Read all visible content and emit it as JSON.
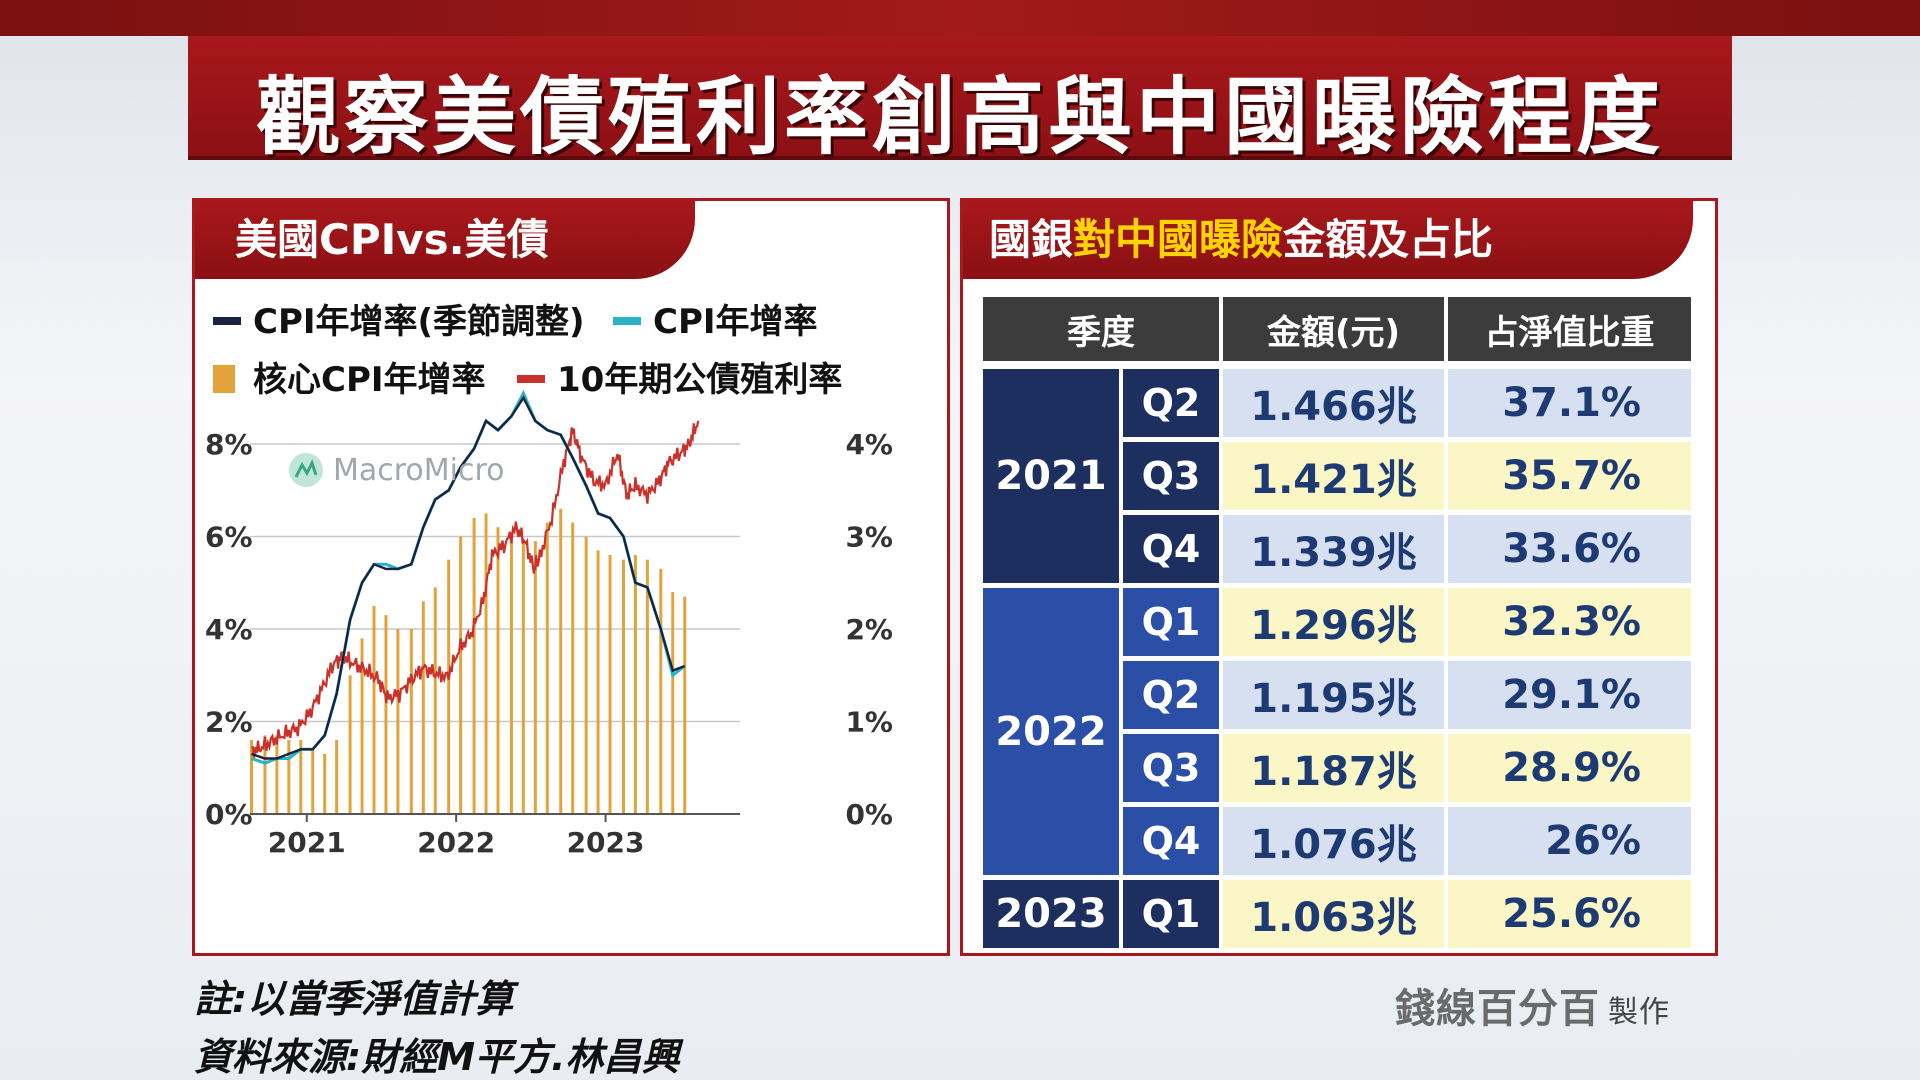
{
  "page": {
    "title": "觀察美債殖利率創高與中國曝險程度",
    "note": "註:以當季淨值計算",
    "source": "資料來源:財經M平方.林昌興",
    "maker": "錢線百分百",
    "maker_suffix": "製作"
  },
  "left_panel": {
    "tab": "美國CPIvs.美債",
    "watermark": "MacroMicro"
  },
  "chart_data": {
    "type": "line",
    "legend": [
      {
        "name": "CPI年增率(季節調整)",
        "color": "#1b2140",
        "kind": "line"
      },
      {
        "name": "CPI年增率",
        "color": "#2ab3c7",
        "kind": "line"
      },
      {
        "name": "核心CPI年增率",
        "color": "#e3a33b",
        "kind": "bar"
      },
      {
        "name": "10年期公債殖利率",
        "color": "#c9312a",
        "kind": "line"
      }
    ],
    "left_axis": {
      "ticks": [
        "0%",
        "2%",
        "4%",
        "6%",
        "8%"
      ],
      "ylim": [
        0,
        8
      ]
    },
    "right_axis": {
      "ticks": [
        "0%",
        "1%",
        "2%",
        "3%",
        "4%"
      ],
      "ylim": [
        0,
        4
      ]
    },
    "x_ticks": [
      {
        "label": "2021",
        "x": 2021.0
      },
      {
        "label": "2022",
        "x": 2022.0
      },
      {
        "label": "2023",
        "x": 2023.0
      }
    ],
    "xlim": [
      2020.62,
      2023.9
    ],
    "cpi_sa": [
      [
        2020.63,
        1.3
      ],
      [
        2020.72,
        1.2
      ],
      [
        2020.8,
        1.2
      ],
      [
        2020.88,
        1.3
      ],
      [
        2020.96,
        1.4
      ],
      [
        2021.04,
        1.4
      ],
      [
        2021.12,
        1.7
      ],
      [
        2021.2,
        2.6
      ],
      [
        2021.29,
        4.2
      ],
      [
        2021.37,
        5.0
      ],
      [
        2021.45,
        5.4
      ],
      [
        2021.53,
        5.3
      ],
      [
        2021.61,
        5.3
      ],
      [
        2021.7,
        5.4
      ],
      [
        2021.78,
        6.2
      ],
      [
        2021.86,
        6.8
      ],
      [
        2021.95,
        7.0
      ],
      [
        2022.03,
        7.5
      ],
      [
        2022.12,
        7.9
      ],
      [
        2022.2,
        8.5
      ],
      [
        2022.28,
        8.3
      ],
      [
        2022.37,
        8.6
      ],
      [
        2022.45,
        9.0
      ],
      [
        2022.53,
        8.5
      ],
      [
        2022.61,
        8.3
      ],
      [
        2022.7,
        8.2
      ],
      [
        2022.78,
        7.7
      ],
      [
        2022.87,
        7.1
      ],
      [
        2022.95,
        6.5
      ],
      [
        2023.03,
        6.4
      ],
      [
        2023.12,
        6.0
      ],
      [
        2023.2,
        5.0
      ],
      [
        2023.28,
        4.9
      ],
      [
        2023.37,
        4.0
      ],
      [
        2023.45,
        3.1
      ],
      [
        2023.53,
        3.2
      ]
    ],
    "cpi": [
      [
        2020.63,
        1.2
      ],
      [
        2020.72,
        1.1
      ],
      [
        2020.8,
        1.2
      ],
      [
        2020.88,
        1.2
      ],
      [
        2020.96,
        1.4
      ],
      [
        2021.04,
        1.4
      ],
      [
        2021.12,
        1.7
      ],
      [
        2021.2,
        2.6
      ],
      [
        2021.29,
        4.2
      ],
      [
        2021.37,
        5.0
      ],
      [
        2021.45,
        5.4
      ],
      [
        2021.53,
        5.4
      ],
      [
        2021.61,
        5.3
      ],
      [
        2021.7,
        5.4
      ],
      [
        2021.78,
        6.2
      ],
      [
        2021.86,
        6.8
      ],
      [
        2021.95,
        7.0
      ],
      [
        2022.03,
        7.5
      ],
      [
        2022.12,
        7.9
      ],
      [
        2022.2,
        8.5
      ],
      [
        2022.28,
        8.3
      ],
      [
        2022.37,
        8.6
      ],
      [
        2022.45,
        9.1
      ],
      [
        2022.53,
        8.5
      ],
      [
        2022.61,
        8.3
      ],
      [
        2022.7,
        8.2
      ],
      [
        2022.78,
        7.7
      ],
      [
        2022.87,
        7.1
      ],
      [
        2022.95,
        6.5
      ],
      [
        2023.03,
        6.4
      ],
      [
        2023.12,
        6.0
      ],
      [
        2023.2,
        5.0
      ],
      [
        2023.28,
        4.9
      ],
      [
        2023.37,
        4.0
      ],
      [
        2023.45,
        3.0
      ],
      [
        2023.53,
        3.2
      ]
    ],
    "core_cpi": [
      [
        2020.63,
        1.6
      ],
      [
        2020.72,
        1.7
      ],
      [
        2020.8,
        1.7
      ],
      [
        2020.88,
        1.6
      ],
      [
        2020.96,
        1.6
      ],
      [
        2021.04,
        1.4
      ],
      [
        2021.12,
        1.3
      ],
      [
        2021.2,
        1.6
      ],
      [
        2021.29,
        3.0
      ],
      [
        2021.37,
        3.8
      ],
      [
        2021.45,
        4.5
      ],
      [
        2021.53,
        4.3
      ],
      [
        2021.61,
        4.0
      ],
      [
        2021.7,
        4.0
      ],
      [
        2021.78,
        4.6
      ],
      [
        2021.86,
        4.9
      ],
      [
        2021.95,
        5.5
      ],
      [
        2022.03,
        6.0
      ],
      [
        2022.12,
        6.4
      ],
      [
        2022.2,
        6.5
      ],
      [
        2022.28,
        6.2
      ],
      [
        2022.37,
        6.0
      ],
      [
        2022.45,
        5.9
      ],
      [
        2022.53,
        5.9
      ],
      [
        2022.61,
        6.3
      ],
      [
        2022.7,
        6.6
      ],
      [
        2022.78,
        6.3
      ],
      [
        2022.87,
        6.0
      ],
      [
        2022.95,
        5.7
      ],
      [
        2023.03,
        5.6
      ],
      [
        2023.12,
        5.5
      ],
      [
        2023.2,
        5.6
      ],
      [
        2023.28,
        5.5
      ],
      [
        2023.37,
        5.3
      ],
      [
        2023.45,
        4.8
      ],
      [
        2023.53,
        4.7
      ]
    ],
    "yield_10y": [
      [
        2020.63,
        0.68
      ],
      [
        2020.7,
        0.72
      ],
      [
        2020.78,
        0.8
      ],
      [
        2020.86,
        0.87
      ],
      [
        2020.94,
        0.93
      ],
      [
        2021.02,
        1.09
      ],
      [
        2021.1,
        1.35
      ],
      [
        2021.18,
        1.63
      ],
      [
        2021.24,
        1.7
      ],
      [
        2021.32,
        1.62
      ],
      [
        2021.4,
        1.55
      ],
      [
        2021.48,
        1.45
      ],
      [
        2021.54,
        1.25
      ],
      [
        2021.62,
        1.3
      ],
      [
        2021.7,
        1.45
      ],
      [
        2021.78,
        1.58
      ],
      [
        2021.86,
        1.52
      ],
      [
        2021.94,
        1.48
      ],
      [
        2022.02,
        1.78
      ],
      [
        2022.1,
        1.95
      ],
      [
        2022.18,
        2.3
      ],
      [
        2022.24,
        2.8
      ],
      [
        2022.32,
        2.9
      ],
      [
        2022.4,
        3.1
      ],
      [
        2022.46,
        2.95
      ],
      [
        2022.52,
        2.65
      ],
      [
        2022.56,
        2.78
      ],
      [
        2022.64,
        3.2
      ],
      [
        2022.72,
        3.8
      ],
      [
        2022.78,
        4.15
      ],
      [
        2022.84,
        3.85
      ],
      [
        2022.92,
        3.6
      ],
      [
        2023.0,
        3.55
      ],
      [
        2023.08,
        3.9
      ],
      [
        2023.14,
        3.45
      ],
      [
        2023.2,
        3.55
      ],
      [
        2023.28,
        3.45
      ],
      [
        2023.36,
        3.6
      ],
      [
        2023.42,
        3.8
      ],
      [
        2023.5,
        3.9
      ],
      [
        2023.56,
        4.0
      ],
      [
        2023.62,
        4.25
      ]
    ]
  },
  "right_panel": {
    "tab_pre": "國銀",
    "tab_highlight": "對中國曝險",
    "tab_post": "金額及占比",
    "headers": [
      "季度",
      "金額(元)",
      "占淨值比重"
    ],
    "years": [
      "2021",
      "2022",
      "2023"
    ],
    "rows": [
      {
        "q": "Q2",
        "amount": "1.466兆",
        "ratio": "37.1%"
      },
      {
        "q": "Q3",
        "amount": "1.421兆",
        "ratio": "35.7%"
      },
      {
        "q": "Q4",
        "amount": "1.339兆",
        "ratio": "33.6%"
      },
      {
        "q": "Q1",
        "amount": "1.296兆",
        "ratio": "32.3%"
      },
      {
        "q": "Q2",
        "amount": "1.195兆",
        "ratio": "29.1%"
      },
      {
        "q": "Q3",
        "amount": "1.187兆",
        "ratio": "28.9%"
      },
      {
        "q": "Q4",
        "amount": "1.076兆",
        "ratio": "26%"
      },
      {
        "q": "Q1",
        "amount": "1.063兆",
        "ratio": "25.6%"
      }
    ],
    "colors": {
      "dark_navy": "#1c2f5e",
      "royal_blue": "#2b4fa6",
      "row_blue": "#d6e0f0",
      "row_yellow": "#fbf6c6",
      "header_dark": "#3c3c3c"
    }
  }
}
